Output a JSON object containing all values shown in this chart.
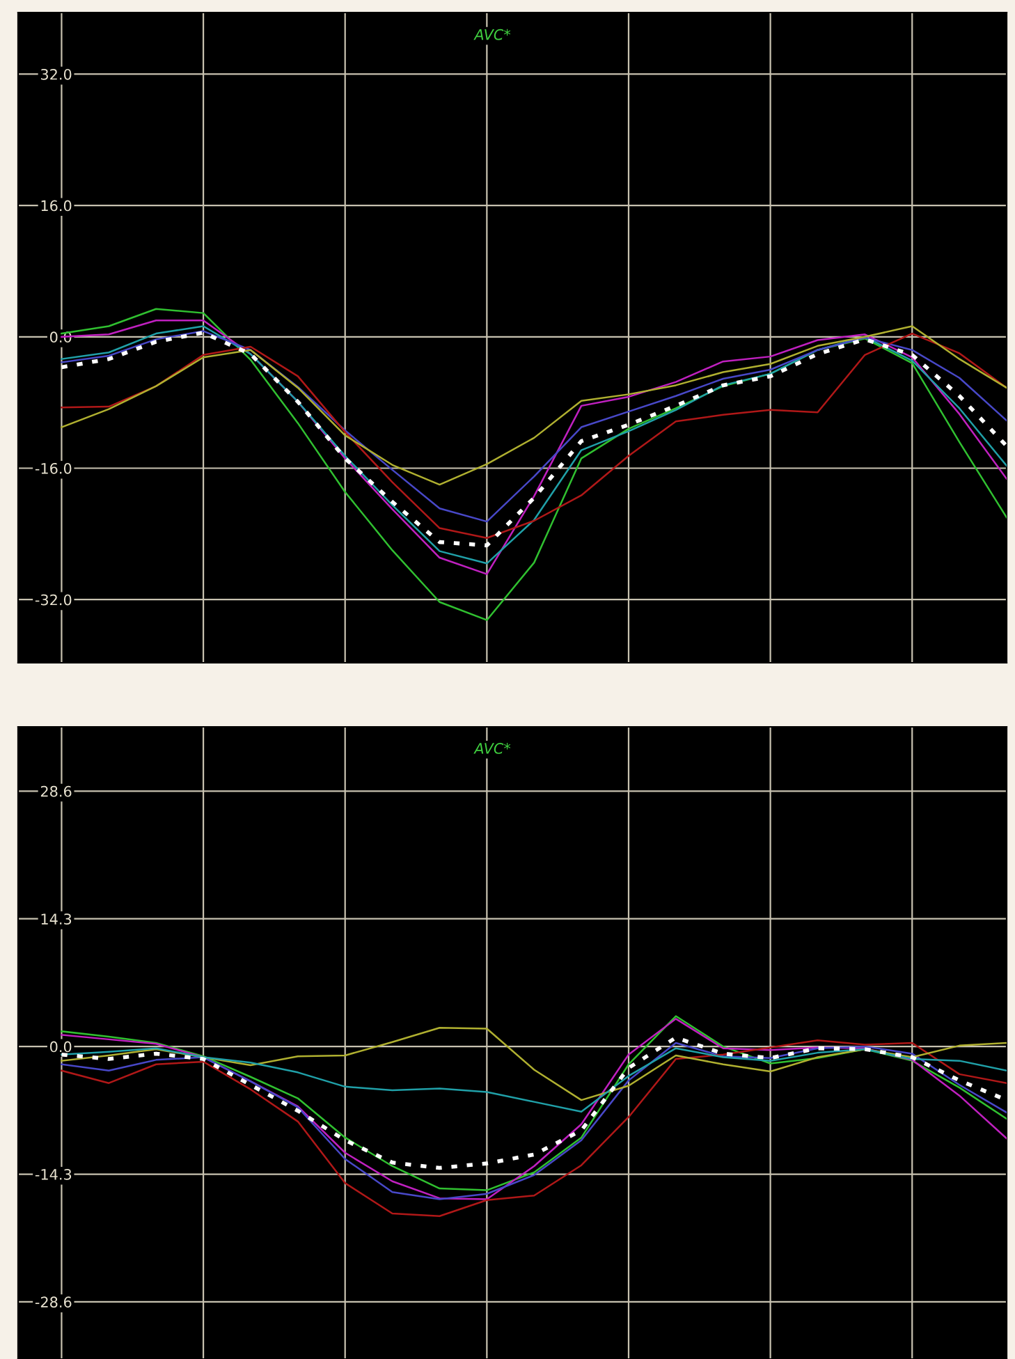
{
  "chart_data": [
    {
      "type": "line",
      "tick_labels": "y",
      "grid": true,
      "annotations": [
        "AVC*"
      ],
      "categories": [
        null,
        null,
        null,
        null,
        null,
        null,
        null,
        null,
        null,
        null,
        null,
        null,
        null,
        null,
        null,
        null,
        null,
        null,
        null,
        null,
        null
      ],
      "ylim": [
        -39.7,
        39.5
      ],
      "yticks": [
        {
          "value": 32,
          "label": "32.0"
        },
        {
          "value": 16,
          "label": "16.0"
        },
        {
          "value": 0,
          "label": "0.0"
        },
        {
          "value": -16,
          "label": "-16.0"
        },
        {
          "value": -32,
          "label": "-32.0"
        }
      ],
      "series": [
        {
          "color": "#30c030",
          "values": [
            0.4,
            1.3,
            3.4,
            2.9,
            -2.8,
            -10.5,
            -18.9,
            -26.0,
            -32.3,
            -34.5,
            -27.5,
            -14.8,
            -11.2,
            -8.7,
            -6.0,
            -4.5,
            -1.6,
            -0.2,
            -3.2,
            -12.8,
            -22.0
          ]
        },
        {
          "color": "#c020c0",
          "values": [
            0,
            0.3,
            2.0,
            2.0,
            -2.1,
            -7.9,
            -14.8,
            -21.0,
            -26.9,
            -28.9,
            -19.4,
            -8.4,
            -7.3,
            -5.5,
            -3.0,
            -2.4,
            -0.4,
            0.3,
            -2.5,
            -9.4,
            -17.3
          ]
        },
        {
          "color": "#20a0a8",
          "values": [
            -2.7,
            -1.9,
            0.4,
            1.3,
            -2.1,
            -7.9,
            -14.5,
            -20.5,
            -26.1,
            -27.6,
            -22.3,
            -13.8,
            -11.5,
            -8.9,
            -5.9,
            -4.5,
            -1.6,
            0,
            -2.9,
            -8.7,
            -15.7
          ]
        },
        {
          "color": "#4848c8",
          "values": [
            -3.1,
            -2.3,
            -0.3,
            0.7,
            -1.6,
            -6.1,
            -11.4,
            -16.2,
            -20.9,
            -22.5,
            -17.0,
            -11.0,
            -9.1,
            -7.2,
            -5.1,
            -4.0,
            -1.6,
            -0.1,
            -1.6,
            -5.0,
            -10.2
          ]
        },
        {
          "color": "#b01818",
          "values": [
            -8.6,
            -8.5,
            -6.0,
            -2.2,
            -1.2,
            -4.8,
            -11.6,
            -17.7,
            -23.3,
            -24.5,
            -22.4,
            -19.3,
            -14.5,
            -10.3,
            -9.5,
            -8.9,
            -9.2,
            -2.2,
            0.4,
            -2.0,
            -6.2
          ]
        },
        {
          "color": "#b0b030",
          "values": [
            -11.0,
            -8.8,
            -6.0,
            -2.5,
            -1.6,
            -6.2,
            -12.0,
            -15.6,
            -18.0,
            -15.5,
            -12.3,
            -7.8,
            -7.0,
            -5.9,
            -4.3,
            -3.3,
            -1.1,
            0,
            1.3,
            -2.7,
            -6.2
          ]
        },
        {
          "color": "#ffffff",
          "line_style": "dotted",
          "values": [
            -3.7,
            -2.7,
            -0.6,
            0.5,
            -2.1,
            -7.9,
            -14.8,
            -20.1,
            -25.0,
            -25.4,
            -19.6,
            -12.7,
            -10.7,
            -8.4,
            -5.9,
            -4.8,
            -2.1,
            -0.3,
            -2.2,
            -7.2,
            -13.3
          ]
        }
      ]
    },
    {
      "type": "line",
      "tick_labels": "y",
      "grid": true,
      "annotations": [
        "AVC*"
      ],
      "categories": [
        null,
        null,
        null,
        null,
        null,
        null,
        null,
        null,
        null,
        null,
        null,
        null,
        null,
        null,
        null,
        null,
        null,
        null,
        null,
        null,
        null
      ],
      "ylim": [
        -35.0,
        35.8
      ],
      "yticks": [
        {
          "value": 28.6,
          "label": "28.6"
        },
        {
          "value": 14.3,
          "label": "14.3"
        },
        {
          "value": 0,
          "label": "0.0"
        },
        {
          "value": -14.3,
          "label": "-14.3"
        },
        {
          "value": -28.6,
          "label": "-28.6"
        }
      ],
      "series": [
        {
          "color": "#30c030",
          "values": [
            1.7,
            1.1,
            0.4,
            -1.1,
            -3.4,
            -5.8,
            -10.2,
            -13.4,
            -15.9,
            -16.1,
            -14.1,
            -10.2,
            -2.0,
            3.4,
            0,
            -1.9,
            -1.3,
            -0.3,
            -1.6,
            -4.6,
            -8.1
          ]
        },
        {
          "color": "#c020c0",
          "values": [
            1.3,
            0.8,
            0.3,
            -1.2,
            -3.9,
            -6.7,
            -11.9,
            -15.1,
            -17.0,
            -17.1,
            -13.4,
            -8.7,
            -0.9,
            3.1,
            -0.2,
            -0.4,
            -0.1,
            -0.2,
            -1.5,
            -5.5,
            -10.3
          ]
        },
        {
          "color": "#4848c8",
          "values": [
            -2.0,
            -2.7,
            -1.5,
            -1.2,
            -3.9,
            -6.8,
            -12.6,
            -16.3,
            -17.1,
            -16.5,
            -14.4,
            -10.5,
            -3.8,
            0.4,
            -1.1,
            -1.3,
            -0.2,
            0,
            -0.8,
            -4.3,
            -7.4
          ]
        },
        {
          "color": "#b01818",
          "values": [
            -2.7,
            -4.1,
            -2.0,
            -1.7,
            -4.8,
            -8.4,
            -15.3,
            -18.7,
            -19.0,
            -17.2,
            -16.7,
            -13.3,
            -7.9,
            -1.4,
            -0.9,
            -0.1,
            0.7,
            0.2,
            0.4,
            -3.1,
            -4.1
          ]
        },
        {
          "color": "#b0b030",
          "values": [
            -1.6,
            -1.0,
            -0.3,
            -1.2,
            -2.1,
            -1.1,
            -1.0,
            0.5,
            2.1,
            2.0,
            -2.6,
            -6.0,
            -4.4,
            -1.0,
            -2.0,
            -2.8,
            -1.2,
            -0.3,
            -1.2,
            0.1,
            0.4
          ]
        },
        {
          "color": "#20a0a8",
          "values": [
            -0.9,
            -0.6,
            -0.2,
            -1.2,
            -1.8,
            -2.9,
            -4.5,
            -4.9,
            -4.7,
            -5.1,
            -6.2,
            -7.3,
            -3.3,
            -0.2,
            -1.2,
            -1.6,
            -0.7,
            -0.3,
            -1.4,
            -1.6,
            -2.7
          ]
        },
        {
          "color": "#ffffff",
          "line_style": "dotted",
          "values": [
            -0.9,
            -1.4,
            -0.8,
            -1.4,
            -4.3,
            -7.2,
            -10.5,
            -13.0,
            -13.6,
            -13.1,
            -12.1,
            -9.4,
            -2.4,
            1.0,
            -0.8,
            -1.3,
            -0.2,
            -0.3,
            -1.2,
            -3.8,
            -6.0
          ]
        }
      ]
    }
  ]
}
